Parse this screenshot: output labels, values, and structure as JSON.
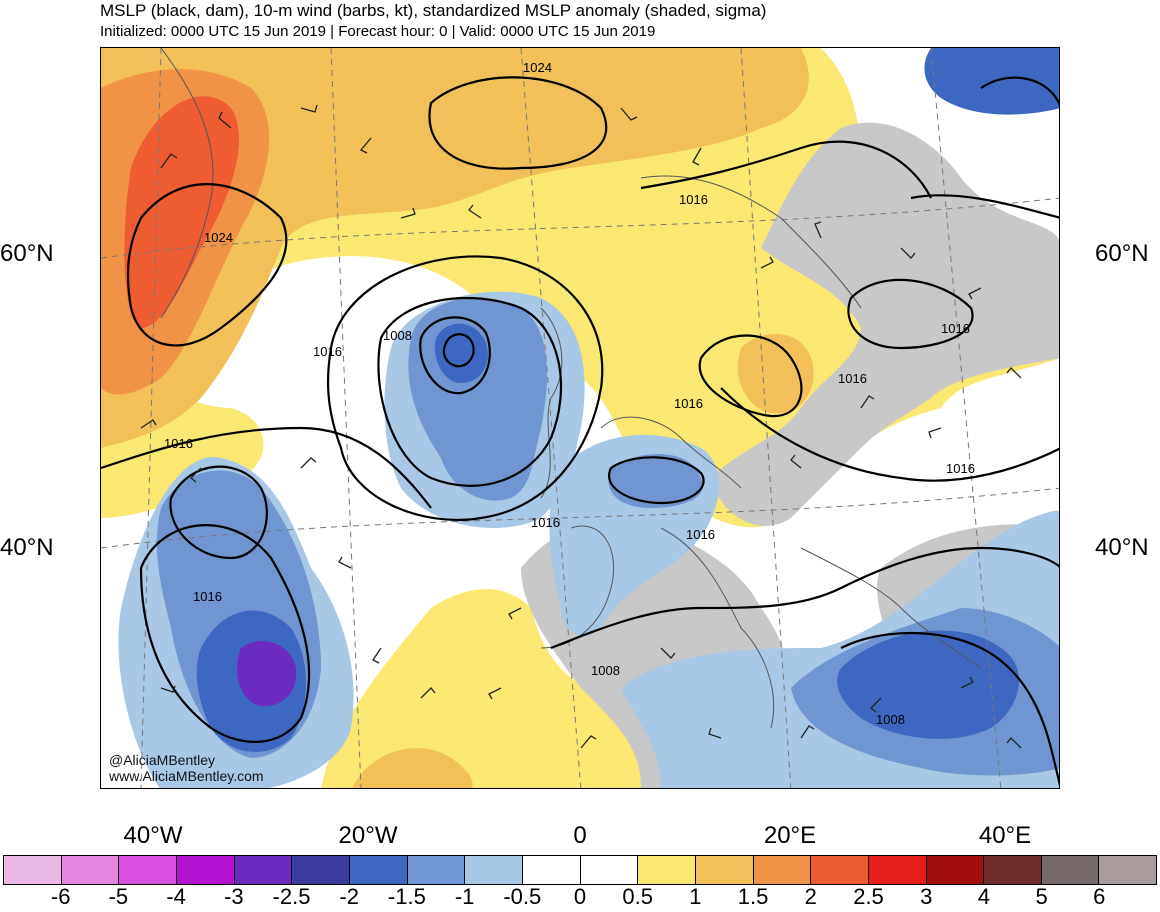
{
  "header": {
    "title": "MSLP (black, dam), 10-m wind (barbs, kt), standardized MSLP anomaly (shaded, sigma)",
    "subtitle": "Initialized: 0000 UTC 15 Jun 2019 | Forecast hour: 0 | Valid: 0000 UTC 15 Jun 2019"
  },
  "watermark": {
    "handle": "@AliciaMBentley",
    "url": "www.AliciaMBentley.com"
  },
  "axes": {
    "lat_left": [
      "60°N",
      "40°N"
    ],
    "lat_right": [
      "60°N",
      "40°N"
    ],
    "lon_bottom": [
      "40°W",
      "20°W",
      "0",
      "20°E",
      "40°E"
    ]
  },
  "contour_labels": [
    "1024",
    "1024",
    "1016",
    "1008",
    "1016",
    "1016",
    "1016",
    "1016",
    "1016",
    "1016",
    "1016",
    "1016",
    "1016",
    "1008"
  ],
  "colorbar": {
    "labels": [
      "-6",
      "-5",
      "-4",
      "-3",
      "-2.5",
      "-2",
      "-1.5",
      "-1",
      "-0.5",
      "0",
      "0.5",
      "1",
      "1.5",
      "2",
      "2.5",
      "3",
      "4",
      "5",
      "6"
    ],
    "colors": [
      "#ecb9e6",
      "#e685e0",
      "#d94fdf",
      "#b312d0",
      "#6c2bbf",
      "#3b3c9e",
      "#3d68c2",
      "#6f96d2",
      "#a9c8e6",
      "#ffffff",
      "#ffffff",
      "#fbe873",
      "#f2bf58",
      "#f19346",
      "#ee5c32",
      "#e61e1c",
      "#a30f0f",
      "#6f2a2a",
      "#75696a",
      "#a89c9d"
    ]
  },
  "map_colors": {
    "land_gray": "#c8c8c8",
    "border": "#555555",
    "contour": "#000000"
  }
}
